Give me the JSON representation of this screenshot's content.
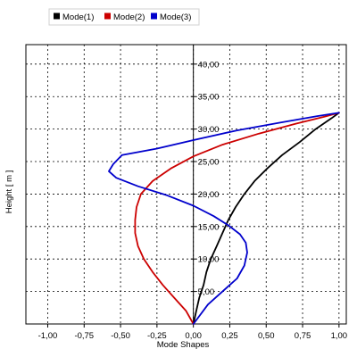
{
  "chart_data": {
    "type": "line",
    "xlabel": "Mode Shapes",
    "ylabel": "Height  [ m ]",
    "xlim": [
      -1.15,
      1.05
    ],
    "ylim": [
      0,
      43
    ],
    "x_ticks": [
      -1.0,
      -0.75,
      -0.5,
      -0.25,
      0.0,
      0.25,
      0.5,
      0.75,
      1.0
    ],
    "x_tick_labels": [
      "-1,00",
      "-0,75",
      "-0,50",
      "-0,25",
      "0,00",
      "0,25",
      "0,50",
      "0,75",
      "1,00"
    ],
    "y_ticks": [
      5,
      10,
      15,
      20,
      25,
      30,
      35,
      40
    ],
    "y_tick_labels": [
      "5,00",
      "10,00",
      "15,00",
      "20,00",
      "25,00",
      "30,00",
      "35,00",
      "40,00"
    ],
    "grid": true,
    "legend_position": "top",
    "series": [
      {
        "name": "Mode(1)",
        "color": "#000000",
        "points": [
          [
            0.0,
            0.0
          ],
          [
            0.02,
            2.0
          ],
          [
            0.04,
            4.0
          ],
          [
            0.07,
            6.0
          ],
          [
            0.09,
            8.0
          ],
          [
            0.12,
            10.0
          ],
          [
            0.16,
            12.0
          ],
          [
            0.2,
            14.0
          ],
          [
            0.24,
            16.0
          ],
          [
            0.29,
            18.0
          ],
          [
            0.35,
            20.0
          ],
          [
            0.42,
            22.0
          ],
          [
            0.51,
            24.0
          ],
          [
            0.61,
            26.0
          ],
          [
            0.73,
            28.0
          ],
          [
            0.84,
            30.0
          ],
          [
            0.95,
            31.7
          ],
          [
            1.0,
            32.5
          ]
        ]
      },
      {
        "name": "Mode(2)",
        "color": "#cc0000",
        "points": [
          [
            0.0,
            0.0
          ],
          [
            -0.05,
            2.0
          ],
          [
            -0.13,
            4.0
          ],
          [
            -0.21,
            6.0
          ],
          [
            -0.28,
            8.0
          ],
          [
            -0.34,
            10.0
          ],
          [
            -0.38,
            12.0
          ],
          [
            -0.4,
            14.0
          ],
          [
            -0.4,
            16.0
          ],
          [
            -0.39,
            18.0
          ],
          [
            -0.36,
            20.0
          ],
          [
            -0.28,
            22.0
          ],
          [
            -0.15,
            24.0
          ],
          [
            0.0,
            25.8
          ],
          [
            0.2,
            27.6
          ],
          [
            0.45,
            29.3
          ],
          [
            0.7,
            30.8
          ],
          [
            0.9,
            31.9
          ],
          [
            1.0,
            32.5
          ]
        ]
      },
      {
        "name": "Mode(3)",
        "color": "#0000cc",
        "points": [
          [
            0.0,
            0.0
          ],
          [
            0.1,
            3.0
          ],
          [
            0.2,
            5.0
          ],
          [
            0.3,
            7.0
          ],
          [
            0.35,
            9.0
          ],
          [
            0.37,
            11.0
          ],
          [
            0.36,
            12.5
          ],
          [
            0.32,
            13.8
          ],
          [
            0.24,
            15.2
          ],
          [
            0.14,
            16.6
          ],
          [
            0.0,
            18.2
          ],
          [
            -0.18,
            19.8
          ],
          [
            -0.38,
            21.2
          ],
          [
            -0.53,
            22.5
          ],
          [
            -0.58,
            23.5
          ],
          [
            -0.55,
            24.6
          ],
          [
            -0.49,
            26.0
          ],
          [
            -0.25,
            27.0
          ],
          [
            0.0,
            28.3
          ],
          [
            0.3,
            29.8
          ],
          [
            0.6,
            31.0
          ],
          [
            0.85,
            32.0
          ],
          [
            1.0,
            32.5
          ]
        ]
      }
    ]
  }
}
